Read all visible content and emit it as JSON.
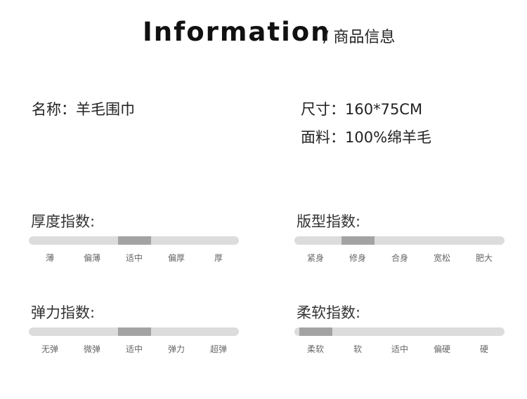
{
  "header": {
    "title": "Information",
    "subtitle": "/ 商品信息"
  },
  "info": {
    "name": "名称：羊毛围巾",
    "size": "尺寸：160*75CM",
    "fabric": "面料：100%绵羊毛"
  },
  "colors": {
    "track": "#dcdcdc",
    "indicator": "#a3a3a3"
  },
  "indices": [
    {
      "id": "thickness",
      "title": "厚度指数:",
      "labels": [
        "薄",
        "偏薄",
        "适中",
        "偏厚",
        "厚"
      ],
      "selected_index": 2
    },
    {
      "id": "fit",
      "title": "版型指数:",
      "labels": [
        "紧身",
        "修身",
        "合身",
        "宽松",
        "肥大"
      ],
      "selected_index": 1
    },
    {
      "id": "elasticity",
      "title": "弹力指数:",
      "labels": [
        "无弹",
        "微弹",
        "适中",
        "弹力",
        "超弹"
      ],
      "selected_index": 2
    },
    {
      "id": "softness",
      "title": "柔软指数:",
      "labels": [
        "柔软",
        "软",
        "适中",
        "偏硬",
        "硬"
      ],
      "selected_index": 0
    }
  ]
}
